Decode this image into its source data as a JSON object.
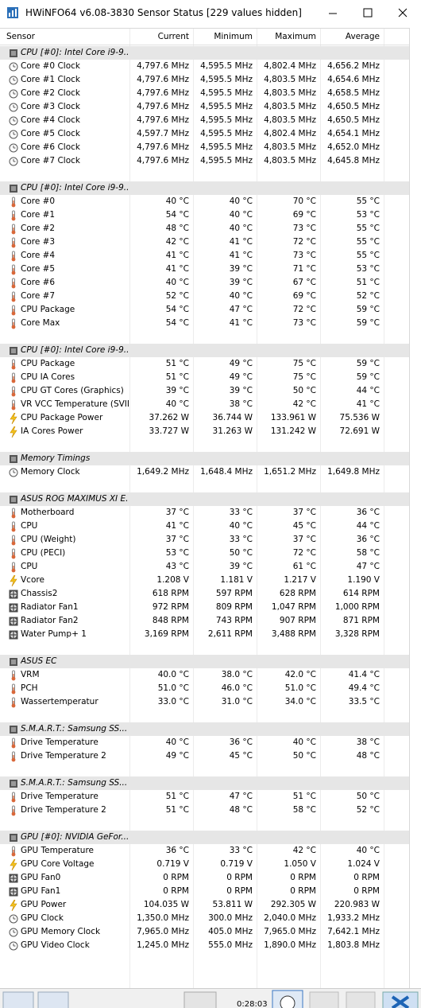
{
  "window": {
    "title": "HWiNFO64 v6.08-3830 Sensor Status [229 values hidden]"
  },
  "table": {
    "columns": [
      "Sensor",
      "Current",
      "Minimum",
      "Maximum",
      "Average"
    ],
    "groups": [
      {
        "name": "CPU [#0]: Intel Core i9-9...",
        "rows": [
          [
            "Core #0 Clock",
            "4,797.6 MHz",
            "4,595.5 MHz",
            "4,802.4 MHz",
            "4,656.2 MHz"
          ],
          [
            "Core #1 Clock",
            "4,797.6 MHz",
            "4,595.5 MHz",
            "4,803.5 MHz",
            "4,654.6 MHz"
          ],
          [
            "Core #2 Clock",
            "4,797.6 MHz",
            "4,595.5 MHz",
            "4,803.5 MHz",
            "4,658.5 MHz"
          ],
          [
            "Core #3 Clock",
            "4,797.6 MHz",
            "4,595.5 MHz",
            "4,803.5 MHz",
            "4,650.5 MHz"
          ],
          [
            "Core #4 Clock",
            "4,797.6 MHz",
            "4,595.5 MHz",
            "4,803.5 MHz",
            "4,650.5 MHz"
          ],
          [
            "Core #5 Clock",
            "4,597.7 MHz",
            "4,595.5 MHz",
            "4,802.4 MHz",
            "4,654.1 MHz"
          ],
          [
            "Core #6 Clock",
            "4,797.6 MHz",
            "4,595.5 MHz",
            "4,803.5 MHz",
            "4,652.0 MHz"
          ],
          [
            "Core #7 Clock",
            "4,797.6 MHz",
            "4,595.5 MHz",
            "4,803.5 MHz",
            "4,645.8 MHz"
          ]
        ]
      },
      {
        "name": "CPU [#0]: Intel Core i9-9...",
        "rows": [
          [
            "Core #0",
            "40 °C",
            "40 °C",
            "70 °C",
            "55 °C"
          ],
          [
            "Core #1",
            "54 °C",
            "40 °C",
            "69 °C",
            "53 °C"
          ],
          [
            "Core #2",
            "48 °C",
            "40 °C",
            "73 °C",
            "55 °C"
          ],
          [
            "Core #3",
            "42 °C",
            "41 °C",
            "72 °C",
            "55 °C"
          ],
          [
            "Core #4",
            "41 °C",
            "41 °C",
            "73 °C",
            "55 °C"
          ],
          [
            "Core #5",
            "41 °C",
            "39 °C",
            "71 °C",
            "53 °C"
          ],
          [
            "Core #6",
            "40 °C",
            "39 °C",
            "67 °C",
            "51 °C"
          ],
          [
            "Core #7",
            "52 °C",
            "40 °C",
            "69 °C",
            "52 °C"
          ],
          [
            "CPU Package",
            "54 °C",
            "47 °C",
            "72 °C",
            "59 °C"
          ],
          [
            "Core Max",
            "54 °C",
            "41 °C",
            "73 °C",
            "59 °C"
          ]
        ]
      },
      {
        "name": "CPU [#0]: Intel Core i9-9...",
        "rows": [
          [
            "CPU Package",
            "51 °C",
            "49 °C",
            "75 °C",
            "59 °C"
          ],
          [
            "CPU IA Cores",
            "51 °C",
            "49 °C",
            "75 °C",
            "59 °C"
          ],
          [
            "CPU GT Cores (Graphics)",
            "39 °C",
            "39 °C",
            "50 °C",
            "44 °C"
          ],
          [
            "VR VCC Temperature (SVID)",
            "40 °C",
            "38 °C",
            "42 °C",
            "41 °C"
          ],
          [
            "CPU Package Power",
            "37.262 W",
            "36.744 W",
            "133.961 W",
            "75.536 W"
          ],
          [
            "IA Cores Power",
            "33.727 W",
            "31.263 W",
            "131.242 W",
            "72.691 W"
          ]
        ]
      },
      {
        "name": "Memory Timings",
        "rows": [
          [
            "Memory Clock",
            "1,649.2 MHz",
            "1,648.4 MHz",
            "1,651.2 MHz",
            "1,649.8 MHz"
          ]
        ]
      },
      {
        "name": "ASUS ROG MAXIMUS XI E...",
        "rows": [
          [
            "Motherboard",
            "37 °C",
            "33 °C",
            "37 °C",
            "36 °C"
          ],
          [
            "CPU",
            "41 °C",
            "40 °C",
            "45 °C",
            "44 °C"
          ],
          [
            "CPU (Weight)",
            "37 °C",
            "33 °C",
            "37 °C",
            "36 °C"
          ],
          [
            "CPU (PECI)",
            "53 °C",
            "50 °C",
            "72 °C",
            "58 °C"
          ],
          [
            "CPU",
            "43 °C",
            "39 °C",
            "61 °C",
            "47 °C"
          ],
          [
            "Vcore",
            "1.208 V",
            "1.181 V",
            "1.217 V",
            "1.190 V"
          ],
          [
            "Chassis2",
            "618 RPM",
            "597 RPM",
            "628 RPM",
            "614 RPM"
          ],
          [
            "Radiator Fan1",
            "972 RPM",
            "809 RPM",
            "1,047 RPM",
            "1,000 RPM"
          ],
          [
            "Radiator Fan2",
            "848 RPM",
            "743 RPM",
            "907 RPM",
            "871 RPM"
          ],
          [
            "Water Pump+ 1",
            "3,169 RPM",
            "2,611 RPM",
            "3,488 RPM",
            "3,328 RPM"
          ]
        ]
      },
      {
        "name": "ASUS EC",
        "rows": [
          [
            "VRM",
            "40.0 °C",
            "38.0 °C",
            "42.0 °C",
            "41.4 °C"
          ],
          [
            "PCH",
            "51.0 °C",
            "46.0 °C",
            "51.0 °C",
            "49.4 °C"
          ],
          [
            "Wassertemperatur",
            "33.0 °C",
            "31.0 °C",
            "34.0 °C",
            "33.5 °C"
          ]
        ]
      },
      {
        "name": "S.M.A.R.T.: Samsung SS...",
        "rows": [
          [
            "Drive Temperature",
            "40 °C",
            "36 °C",
            "40 °C",
            "38 °C"
          ],
          [
            "Drive Temperature 2",
            "49 °C",
            "45 °C",
            "50 °C",
            "48 °C"
          ]
        ]
      },
      {
        "name": "S.M.A.R.T.: Samsung SS...",
        "rows": [
          [
            "Drive Temperature",
            "51 °C",
            "47 °C",
            "51 °C",
            "50 °C"
          ],
          [
            "Drive Temperature 2",
            "51 °C",
            "48 °C",
            "58 °C",
            "52 °C"
          ]
        ]
      },
      {
        "name": "GPU [#0]: NVIDIA GeFor...",
        "rows": [
          [
            "GPU Temperature",
            "36 °C",
            "33 °C",
            "42 °C",
            "40 °C"
          ],
          [
            "GPU Core Voltage",
            "0.719 V",
            "0.719 V",
            "1.050 V",
            "1.024 V"
          ],
          [
            "GPU Fan0",
            "0 RPM",
            "0 RPM",
            "0 RPM",
            "0 RPM"
          ],
          [
            "GPU Fan1",
            "0 RPM",
            "0 RPM",
            "0 RPM",
            "0 RPM"
          ],
          [
            "GPU Power",
            "104.035 W",
            "53.811 W",
            "292.305 W",
            "220.983 W"
          ],
          [
            "GPU Clock",
            "1,350.0 MHz",
            "300.0 MHz",
            "2,040.0 MHz",
            "1,933.2 MHz"
          ],
          [
            "GPU Memory Clock",
            "7,965.0 MHz",
            "405.0 MHz",
            "7,965.0 MHz",
            "7,642.1 MHz"
          ],
          [
            "GPU Video Clock",
            "1,245.0 MHz",
            "555.0 MHz",
            "1,890.0 MHz",
            "1,803.8 MHz"
          ]
        ]
      }
    ]
  },
  "toolbar": {
    "time": "0:28:03"
  }
}
